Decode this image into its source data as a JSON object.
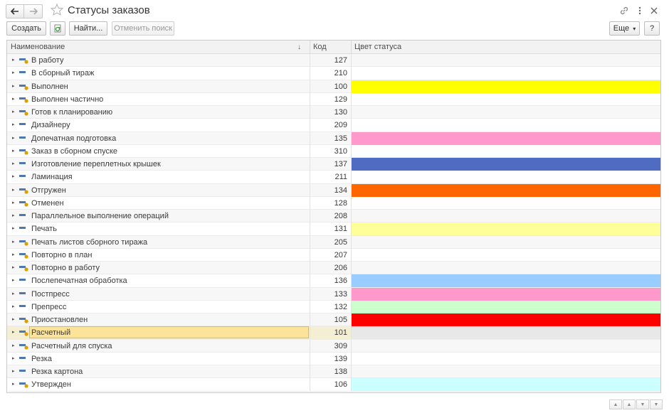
{
  "window": {
    "title": "Статусы заказов"
  },
  "toolbar": {
    "create_label": "Создать",
    "find_label": "Найти...",
    "cancel_search_label": "Отменить поиск",
    "more_label": "Еще",
    "help_label": "?"
  },
  "table": {
    "columns": [
      "Наименование",
      "Код",
      "Цвет статуса"
    ],
    "rows": [
      {
        "name": "В работу",
        "code": "127",
        "color": "",
        "icon": "folder-status-icon"
      },
      {
        "name": "В сборный тираж",
        "code": "210",
        "color": "",
        "icon": "status-icon"
      },
      {
        "name": "Выполнен",
        "code": "100",
        "color": "#ffff00",
        "icon": "folder-status-icon"
      },
      {
        "name": "Выполнен частично",
        "code": "129",
        "color": "",
        "icon": "folder-status-icon"
      },
      {
        "name": "Готов к планированию",
        "code": "130",
        "color": "",
        "icon": "folder-status-icon"
      },
      {
        "name": "Дизайнеру",
        "code": "209",
        "color": "",
        "icon": "status-icon"
      },
      {
        "name": "Допечатная подготовка",
        "code": "135",
        "color": "#ff99cc",
        "icon": "status-icon"
      },
      {
        "name": "Заказ в сборном спуске",
        "code": "310",
        "color": "",
        "icon": "folder-status-icon"
      },
      {
        "name": "Изготовление переплетных крышек",
        "code": "137",
        "color": "#4f6bc2",
        "icon": "status-icon"
      },
      {
        "name": "Ламинация",
        "code": "211",
        "color": "",
        "icon": "status-icon"
      },
      {
        "name": "Отгружен",
        "code": "134",
        "color": "#ff6600",
        "icon": "folder-status-icon"
      },
      {
        "name": "Отменен",
        "code": "128",
        "color": "",
        "icon": "folder-status-icon"
      },
      {
        "name": "Параллельное выполнение операций",
        "code": "208",
        "color": "",
        "icon": "status-icon"
      },
      {
        "name": "Печать",
        "code": "131",
        "color": "#ffff99",
        "icon": "status-icon"
      },
      {
        "name": "Печать листов сборного тиража",
        "code": "205",
        "color": "",
        "icon": "folder-status-icon"
      },
      {
        "name": "Повторно в план",
        "code": "207",
        "color": "",
        "icon": "folder-status-icon"
      },
      {
        "name": "Повторно в работу",
        "code": "206",
        "color": "",
        "icon": "folder-status-icon"
      },
      {
        "name": "Послепечатная обработка",
        "code": "136",
        "color": "#99ccff",
        "icon": "status-icon"
      },
      {
        "name": "Постпресс",
        "code": "133",
        "color": "#ff99cc",
        "icon": "status-icon"
      },
      {
        "name": "Препресс",
        "code": "132",
        "color": "#ccffcc",
        "icon": "status-icon"
      },
      {
        "name": "Приостановлен",
        "code": "105",
        "color": "#ff0000",
        "icon": "folder-status-icon"
      },
      {
        "name": "Расчетный",
        "code": "101",
        "color": "#e8e8e8",
        "icon": "folder-status-icon",
        "selected": true
      },
      {
        "name": "Расчетный для спуска",
        "code": "309",
        "color": "",
        "icon": "folder-status-icon"
      },
      {
        "name": "Резка",
        "code": "139",
        "color": "",
        "icon": "status-icon"
      },
      {
        "name": "Резка картона",
        "code": "138",
        "color": "",
        "icon": "status-icon"
      },
      {
        "name": "Утвержден",
        "code": "106",
        "color": "#ccffff",
        "icon": "folder-status-icon"
      }
    ]
  },
  "icons": {
    "back": "arrow-left-icon",
    "forward": "arrow-right-icon",
    "favorite": "star-icon",
    "link": "link-icon",
    "menu": "more-vertical-icon",
    "close": "close-icon",
    "refresh": "refresh-icon",
    "sort": "sort-down-icon"
  },
  "colors": {
    "selection_fill": "#fbe39a",
    "selection_border": "#e6b94a",
    "status_icon_blue": "#4a78b5",
    "status_icon_gold": "#d9a000"
  }
}
